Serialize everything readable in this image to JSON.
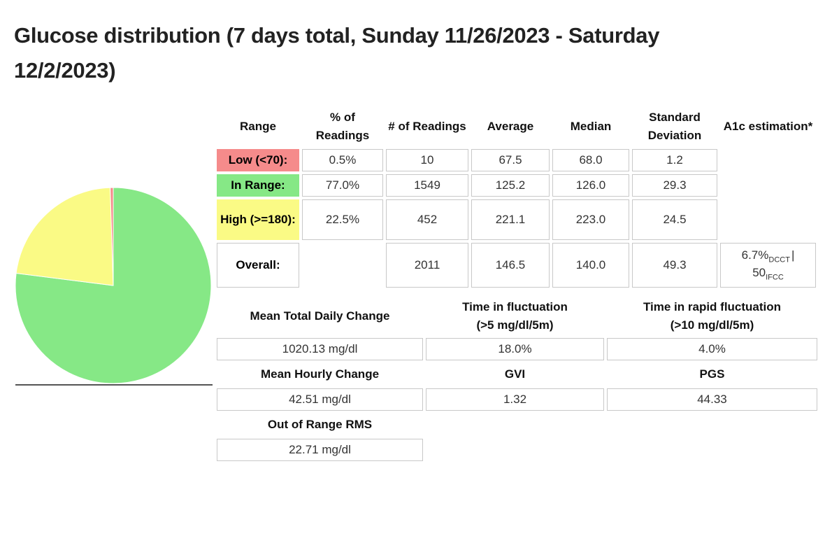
{
  "page": {
    "title": "Glucose distribution (7 days total, Sunday 11/26/2023 - Saturday 12/2/2023)"
  },
  "colors": {
    "low": "#f58b8b",
    "in_range": "#86e886",
    "high": "#fafa85",
    "cell_border": "#c8c8c8"
  },
  "chart_data": {
    "type": "pie",
    "title": "Glucose distribution (7 days total, Sunday 11/26/2023 - Saturday 12/2/2023)",
    "legend": "none",
    "start_angle_deg": 0,
    "direction": "clockwise",
    "slices": [
      {
        "label": "In Range",
        "value": 77.0,
        "color": "#86e886"
      },
      {
        "label": "High (>=180)",
        "value": 22.5,
        "color": "#fafa85"
      },
      {
        "label": "Low (<70)",
        "value": 0.5,
        "color": "#f58b8b"
      }
    ]
  },
  "distribution_table": {
    "columns": [
      "Range",
      "% of Readings",
      "# of Readings",
      "Average",
      "Median",
      "Standard Deviation",
      "A1c estimation*"
    ],
    "rows": [
      {
        "range": "Low (<70):",
        "pct": "0.5%",
        "count": "10",
        "average": "67.5",
        "median": "68.0",
        "std_dev": "1.2"
      },
      {
        "range": "In Range:",
        "pct": "77.0%",
        "count": "1549",
        "average": "125.2",
        "median": "126.0",
        "std_dev": "29.3"
      },
      {
        "range": "High (>=180):",
        "pct": "22.5%",
        "count": "452",
        "average": "221.1",
        "median": "223.0",
        "std_dev": "24.5"
      },
      {
        "range": "Overall:",
        "pct": "",
        "count": "2011",
        "average": "146.5",
        "median": "140.0",
        "std_dev": "49.3",
        "a1c": {
          "dcct_value": "6.7%",
          "dcct_label": "DCCT",
          "separator": "|",
          "ifcc_value": "50",
          "ifcc_label": "IFCC"
        }
      }
    ]
  },
  "stats": {
    "mean_total_daily_change": {
      "label": "Mean Total Daily Change",
      "value": "1020.13 mg/dl"
    },
    "time_in_fluctuation": {
      "label": "Time in fluctuation",
      "sublabel": "(>5 mg/dl/5m)",
      "value": "18.0%"
    },
    "time_in_rapid_fluctuation": {
      "label": "Time in rapid fluctuation",
      "sublabel": "(>10 mg/dl/5m)",
      "value": "4.0%"
    },
    "mean_hourly_change": {
      "label": "Mean Hourly Change",
      "value": "42.51 mg/dl"
    },
    "gvi": {
      "label": "GVI",
      "value": "1.32"
    },
    "pgs": {
      "label": "PGS",
      "value": "44.33"
    },
    "out_of_range_rms": {
      "label": "Out of Range RMS",
      "value": "22.71 mg/dl"
    }
  }
}
